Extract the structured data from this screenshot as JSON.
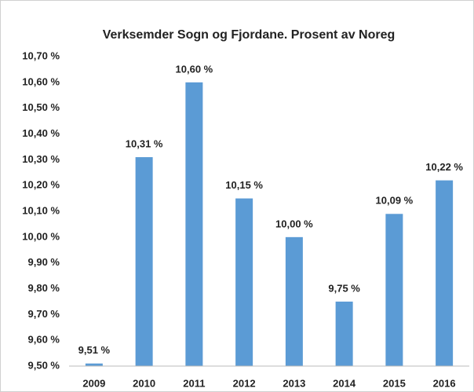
{
  "chart_data": {
    "type": "bar",
    "title": "Verksemder Sogn og Fjordane. Prosent av Noreg",
    "categories": [
      "2009",
      "2010",
      "2011",
      "2012",
      "2013",
      "2014",
      "2015",
      "2016"
    ],
    "values": [
      9.51,
      10.31,
      10.6,
      10.15,
      10.0,
      9.75,
      10.09,
      10.22
    ],
    "value_labels": [
      "9,51 %",
      "10,31 %",
      "10,60 %",
      "10,15 %",
      "10,00 %",
      "9,75 %",
      "10,09 %",
      "10,22 %"
    ],
    "color": "#5b9bd5",
    "ylim": [
      9.5,
      10.7
    ],
    "yticks": [
      {
        "value": 9.5,
        "label": "9,50 %"
      },
      {
        "value": 9.6,
        "label": "9,60 %"
      },
      {
        "value": 9.7,
        "label": "9,70 %"
      },
      {
        "value": 9.8,
        "label": "9,80 %"
      },
      {
        "value": 9.9,
        "label": "9,90 %"
      },
      {
        "value": 10.0,
        "label": "10,00 %"
      },
      {
        "value": 10.1,
        "label": "10,10 %"
      },
      {
        "value": 10.2,
        "label": "10,20 %"
      },
      {
        "value": 10.3,
        "label": "10,30 %"
      },
      {
        "value": 10.4,
        "label": "10,40 %"
      },
      {
        "value": 10.5,
        "label": "10,50 %"
      },
      {
        "value": 10.6,
        "label": "10,60 %"
      },
      {
        "value": 10.7,
        "label": "10,70 %"
      }
    ],
    "grid": false
  }
}
